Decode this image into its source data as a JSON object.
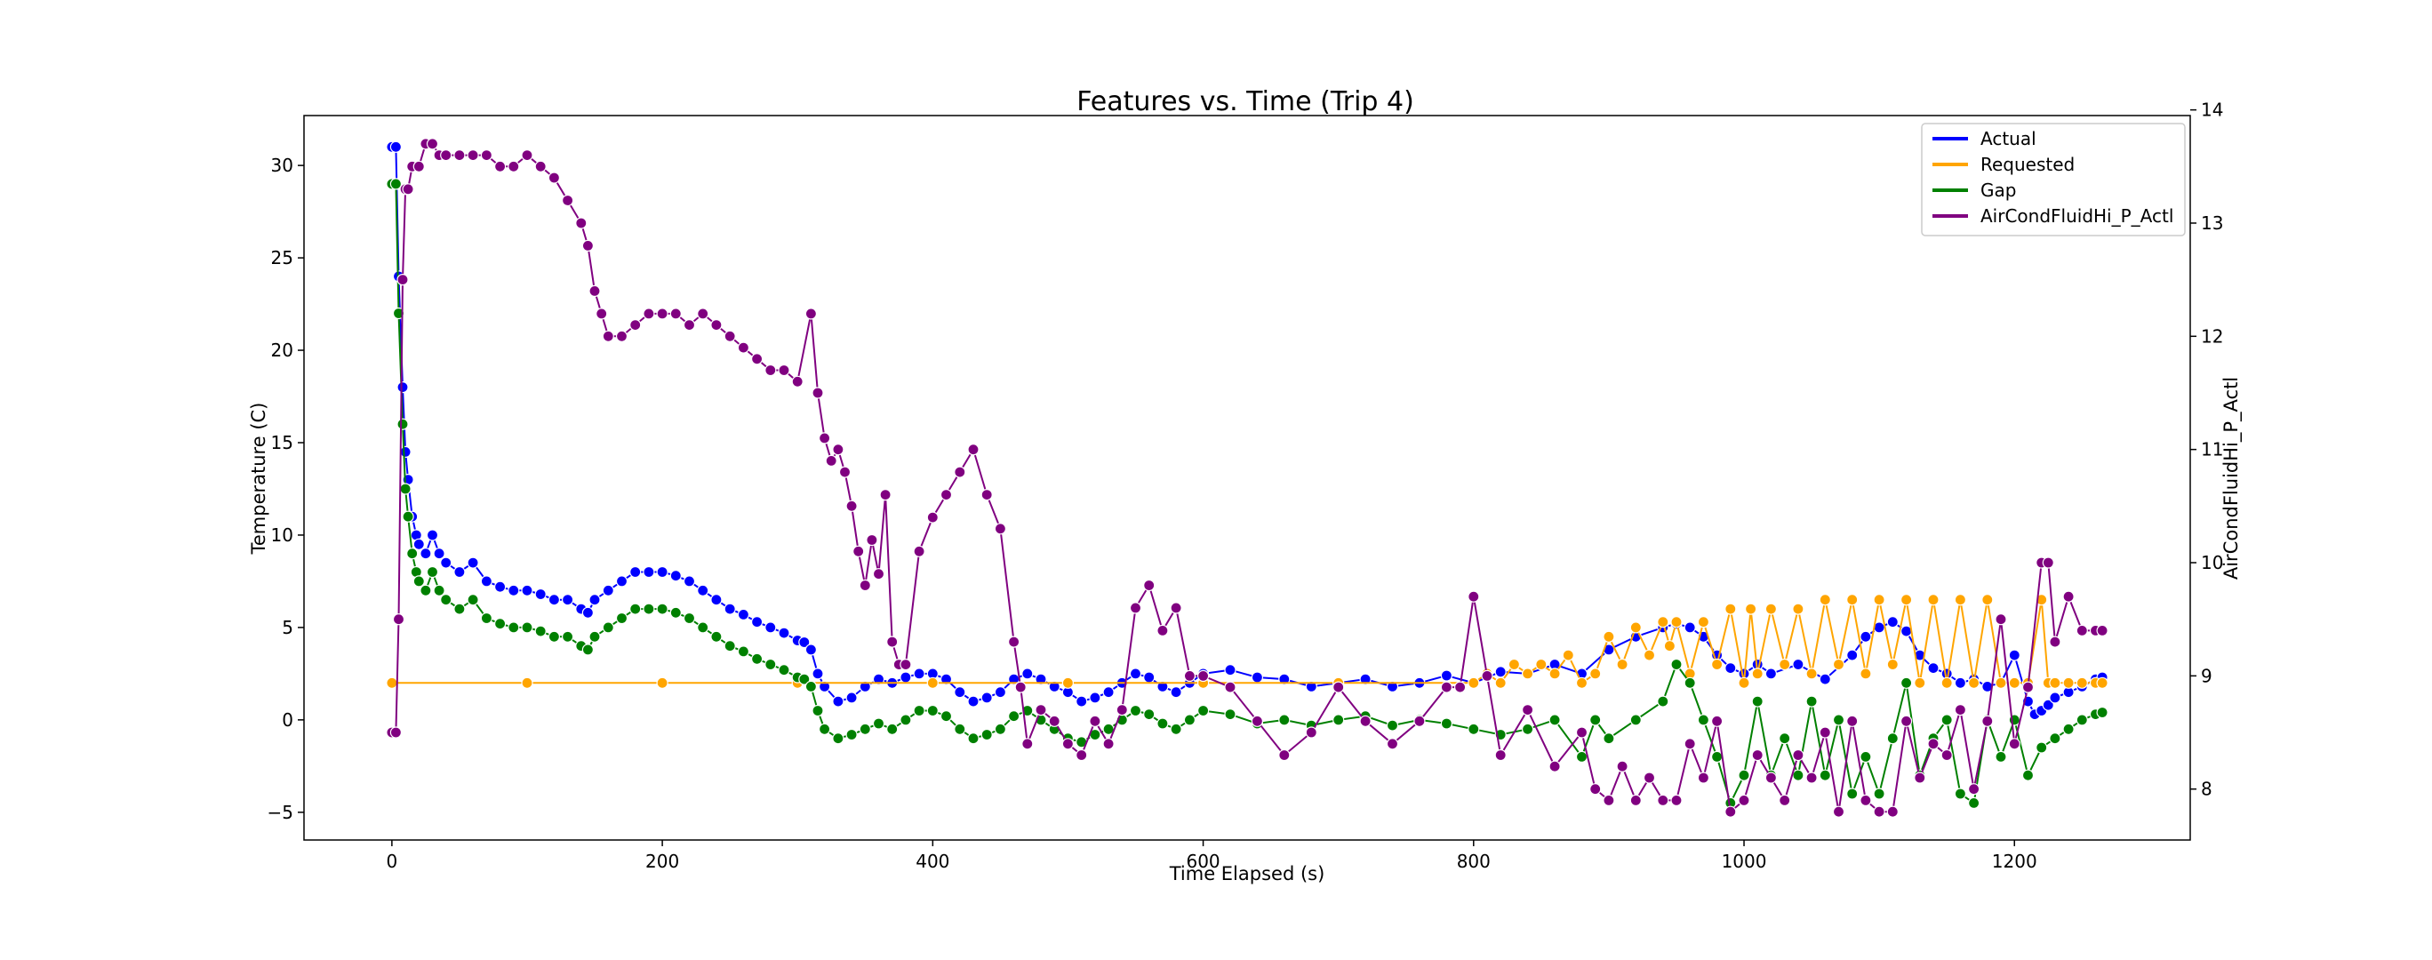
{
  "chart_data": {
    "type": "line",
    "title": "Features vs. Time (Trip 4)",
    "xlabel": "Time Elapsed (s)",
    "ylabel": "Temperature (C)",
    "y2label": "AirCondFluidHi_P_Actl",
    "xlim": [
      -65,
      1330
    ],
    "ylim": [
      -6.5,
      32.7
    ],
    "y2lim": [
      7.55,
      13.95
    ],
    "x_ticks": [
      0,
      200,
      400,
      600,
      800,
      1000,
      1200
    ],
    "y_ticks": [
      -5,
      0,
      5,
      10,
      15,
      20,
      25,
      30
    ],
    "y2_ticks": [
      8,
      9,
      10,
      11,
      12,
      13,
      14
    ],
    "grid": false,
    "legend_position": "top-right",
    "markers": true,
    "series": [
      {
        "name": "Actual",
        "axis": "left",
        "color": "#0000ff",
        "x": [
          0,
          3,
          5,
          8,
          10,
          12,
          15,
          18,
          20,
          25,
          30,
          35,
          40,
          50,
          60,
          70,
          80,
          90,
          100,
          110,
          120,
          130,
          140,
          145,
          150,
          160,
          170,
          180,
          190,
          200,
          210,
          220,
          230,
          240,
          250,
          260,
          270,
          280,
          290,
          300,
          305,
          310,
          315,
          320,
          330,
          340,
          350,
          360,
          370,
          380,
          390,
          400,
          410,
          420,
          430,
          440,
          450,
          460,
          470,
          480,
          490,
          500,
          510,
          520,
          530,
          540,
          550,
          560,
          570,
          580,
          590,
          600,
          620,
          640,
          660,
          680,
          700,
          720,
          740,
          760,
          780,
          800,
          820,
          840,
          860,
          880,
          900,
          920,
          940,
          950,
          960,
          970,
          980,
          990,
          1000,
          1010,
          1020,
          1040,
          1060,
          1080,
          1090,
          1100,
          1110,
          1120,
          1130,
          1140,
          1150,
          1160,
          1170,
          1180,
          1190,
          1200,
          1210,
          1215,
          1220,
          1225,
          1230,
          1240,
          1250,
          1260,
          1265
        ],
        "values": [
          31,
          31,
          24,
          18,
          14.5,
          13,
          11,
          10,
          9.5,
          9,
          10,
          9,
          8.5,
          8,
          8.5,
          7.5,
          7.2,
          7,
          7,
          6.8,
          6.5,
          6.5,
          6,
          5.8,
          6.5,
          7,
          7.5,
          8,
          8,
          8,
          7.8,
          7.5,
          7,
          6.5,
          6,
          5.7,
          5.3,
          5,
          4.7,
          4.3,
          4.2,
          3.8,
          2.5,
          1.8,
          1,
          1.2,
          1.8,
          2.2,
          2,
          2.3,
          2.5,
          2.5,
          2.2,
          1.5,
          1,
          1.2,
          1.5,
          2.2,
          2.5,
          2.2,
          1.8,
          1.5,
          1,
          1.2,
          1.5,
          2,
          2.5,
          2.3,
          1.8,
          1.5,
          2,
          2.5,
          2.7,
          2.3,
          2.2,
          1.8,
          2,
          2.2,
          1.8,
          2,
          2.4,
          2,
          2.6,
          2.5,
          3,
          2.5,
          3.8,
          4.5,
          5,
          5.2,
          5,
          4.5,
          3.5,
          2.8,
          2.5,
          3,
          2.5,
          3,
          2.2,
          3.5,
          4.5,
          5,
          5.3,
          4.8,
          3.5,
          2.8,
          2.5,
          2,
          2.2,
          1.8,
          2,
          3.5,
          1,
          0.3,
          0.5,
          0.8,
          1.2,
          1.5,
          1.8,
          2.2,
          2.3
        ]
      },
      {
        "name": "Requested",
        "axis": "left",
        "color": "#ffa500",
        "x": [
          0,
          100,
          200,
          300,
          400,
          500,
          600,
          700,
          800,
          810,
          820,
          830,
          840,
          850,
          860,
          870,
          880,
          890,
          900,
          910,
          920,
          930,
          940,
          945,
          950,
          960,
          970,
          980,
          990,
          1000,
          1005,
          1010,
          1020,
          1030,
          1040,
          1050,
          1060,
          1070,
          1080,
          1090,
          1100,
          1110,
          1120,
          1130,
          1140,
          1150,
          1160,
          1170,
          1180,
          1190,
          1200,
          1210,
          1220,
          1225,
          1230,
          1240,
          1250,
          1260,
          1265
        ],
        "values": [
          2,
          2,
          2,
          2,
          2,
          2,
          2,
          2,
          2,
          2.5,
          2,
          3,
          2.5,
          3,
          2.5,
          3.5,
          2,
          2.5,
          4.5,
          3,
          5,
          3.5,
          5.3,
          4,
          5.3,
          2.5,
          5.3,
          3,
          6,
          2,
          6,
          2.5,
          6,
          3,
          6,
          2.5,
          6.5,
          3,
          6.5,
          2.5,
          6.5,
          3,
          6.5,
          2,
          6.5,
          2,
          6.5,
          2,
          6.5,
          2,
          2,
          2,
          6.5,
          2,
          2,
          2,
          2,
          2,
          2
        ]
      },
      {
        "name": "Gap",
        "axis": "left",
        "color": "#008000",
        "x": [
          0,
          3,
          5,
          8,
          10,
          12,
          15,
          18,
          20,
          25,
          30,
          35,
          40,
          50,
          60,
          70,
          80,
          90,
          100,
          110,
          120,
          130,
          140,
          145,
          150,
          160,
          170,
          180,
          190,
          200,
          210,
          220,
          230,
          240,
          250,
          260,
          270,
          280,
          290,
          300,
          305,
          310,
          315,
          320,
          330,
          340,
          350,
          360,
          370,
          380,
          390,
          400,
          410,
          420,
          430,
          440,
          450,
          460,
          470,
          480,
          490,
          500,
          510,
          520,
          530,
          540,
          550,
          560,
          570,
          580,
          590,
          600,
          620,
          640,
          660,
          680,
          700,
          720,
          740,
          760,
          780,
          800,
          820,
          840,
          860,
          880,
          890,
          900,
          920,
          940,
          950,
          960,
          970,
          980,
          990,
          1000,
          1010,
          1020,
          1030,
          1040,
          1050,
          1060,
          1070,
          1080,
          1090,
          1100,
          1110,
          1120,
          1130,
          1140,
          1150,
          1160,
          1170,
          1180,
          1190,
          1200,
          1210,
          1220,
          1230,
          1240,
          1250,
          1260,
          1265
        ],
        "values": [
          29,
          29,
          22,
          16,
          12.5,
          11,
          9,
          8,
          7.5,
          7,
          8,
          7,
          6.5,
          6,
          6.5,
          5.5,
          5.2,
          5,
          5,
          4.8,
          4.5,
          4.5,
          4,
          3.8,
          4.5,
          5,
          5.5,
          6,
          6,
          6,
          5.8,
          5.5,
          5,
          4.5,
          4,
          3.7,
          3.3,
          3,
          2.7,
          2.3,
          2.2,
          1.8,
          0.5,
          -0.5,
          -1,
          -0.8,
          -0.5,
          -0.2,
          -0.5,
          0,
          0.5,
          0.5,
          0.2,
          -0.5,
          -1,
          -0.8,
          -0.5,
          0.2,
          0.5,
          0,
          -0.5,
          -1,
          -1.2,
          -0.8,
          -0.5,
          0,
          0.5,
          0.3,
          -0.2,
          -0.5,
          0,
          0.5,
          0.3,
          -0.2,
          0,
          -0.3,
          0,
          0.2,
          -0.3,
          0,
          -0.2,
          -0.5,
          -0.8,
          -0.5,
          0,
          -2,
          0,
          -1,
          0,
          1,
          3,
          2,
          0,
          -2,
          -4.5,
          -3,
          1,
          -3,
          -1,
          -3,
          1,
          -3,
          0,
          -4,
          -2,
          -4,
          -1,
          2,
          -3,
          -1,
          0,
          -4,
          -4.5,
          0,
          -2,
          0,
          -3,
          -1.5,
          -1,
          -0.5,
          0,
          0.3,
          0.4
        ]
      },
      {
        "name": "AirCondFluidHi_P_Actl",
        "axis": "right",
        "color": "#800080",
        "x": [
          0,
          3,
          5,
          8,
          10,
          12,
          15,
          20,
          25,
          30,
          35,
          40,
          50,
          60,
          70,
          80,
          90,
          100,
          110,
          120,
          130,
          140,
          145,
          150,
          155,
          160,
          170,
          180,
          190,
          200,
          210,
          220,
          230,
          240,
          250,
          260,
          270,
          280,
          290,
          300,
          310,
          315,
          320,
          325,
          330,
          335,
          340,
          345,
          350,
          355,
          360,
          365,
          370,
          375,
          380,
          390,
          400,
          410,
          420,
          430,
          440,
          450,
          460,
          465,
          470,
          480,
          490,
          500,
          510,
          520,
          530,
          540,
          550,
          560,
          570,
          580,
          590,
          600,
          620,
          640,
          660,
          680,
          700,
          720,
          740,
          760,
          780,
          790,
          800,
          810,
          820,
          840,
          860,
          880,
          890,
          900,
          910,
          920,
          930,
          940,
          950,
          960,
          970,
          980,
          990,
          1000,
          1010,
          1020,
          1030,
          1040,
          1050,
          1060,
          1070,
          1080,
          1090,
          1100,
          1110,
          1120,
          1130,
          1140,
          1150,
          1160,
          1170,
          1180,
          1190,
          1200,
          1210,
          1220,
          1225,
          1230,
          1240,
          1250,
          1260,
          1265
        ],
        "values": [
          8.5,
          8.5,
          9.5,
          12.5,
          13.3,
          13.3,
          13.5,
          13.5,
          13.7,
          13.7,
          13.6,
          13.6,
          13.6,
          13.6,
          13.6,
          13.5,
          13.5,
          13.6,
          13.5,
          13.4,
          13.2,
          13,
          12.8,
          12.4,
          12.2,
          12.0,
          12.0,
          12.1,
          12.2,
          12.2,
          12.2,
          12.1,
          12.2,
          12.1,
          12.0,
          11.9,
          11.8,
          11.7,
          11.7,
          11.6,
          12.2,
          11.5,
          11.1,
          10.9,
          11.0,
          10.8,
          10.5,
          10.1,
          9.8,
          10.2,
          9.9,
          10.6,
          9.3,
          9.1,
          9.1,
          10.1,
          10.4,
          10.6,
          10.8,
          11.0,
          10.6,
          10.3,
          9.3,
          8.9,
          8.4,
          8.7,
          8.6,
          8.4,
          8.3,
          8.6,
          8.4,
          8.7,
          9.6,
          9.8,
          9.4,
          9.6,
          9.0,
          9.0,
          8.9,
          8.6,
          8.3,
          8.5,
          8.9,
          8.6,
          8.4,
          8.6,
          8.9,
          8.9,
          9.7,
          9.0,
          8.3,
          8.7,
          8.2,
          8.5,
          8.0,
          7.9,
          8.2,
          7.9,
          8.1,
          7.9,
          7.9,
          8.4,
          8.1,
          8.6,
          7.8,
          7.9,
          8.3,
          8.1,
          7.9,
          8.3,
          8.1,
          8.5,
          7.8,
          8.6,
          7.9,
          7.8,
          7.8,
          8.6,
          8.1,
          8.4,
          8.3,
          8.7,
          8.0,
          8.6,
          9.5,
          8.4,
          8.9,
          10.0,
          10.0,
          9.3,
          9.7,
          9.4,
          9.4,
          9.4
        ]
      }
    ]
  }
}
